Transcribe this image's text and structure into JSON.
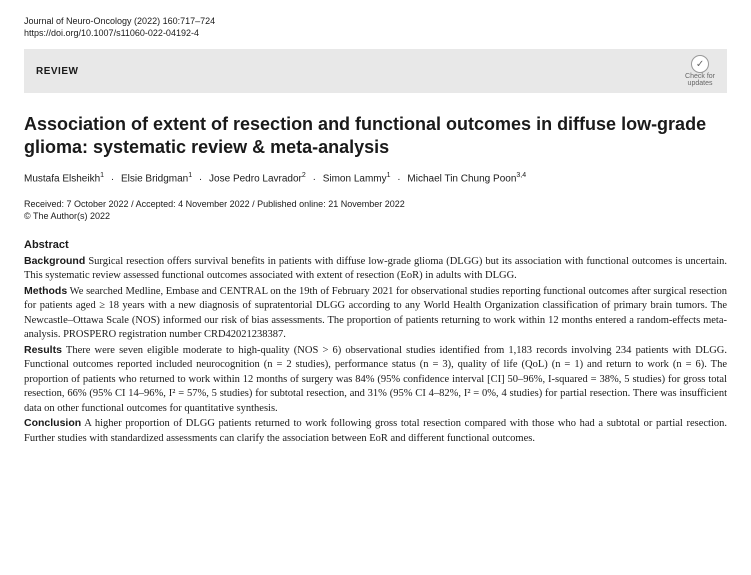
{
  "meta": {
    "journal_line": "Journal of Neuro-Oncology (2022) 160:717–724",
    "doi": "https://doi.org/10.1007/s11060-022-04192-4"
  },
  "review_bar": {
    "label": "REVIEW",
    "check_label_1": "Check for",
    "check_label_2": "updates"
  },
  "title": "Association of extent of resection and functional outcomes in diffuse low-grade glioma: systematic review & meta-analysis",
  "authors": {
    "a1_name": "Mustafa Elsheikh",
    "a1_aff": "1",
    "a2_name": "Elsie Bridgman",
    "a2_aff": "1",
    "a3_name": "Jose Pedro Lavrador",
    "a3_aff": "2",
    "a4_name": "Simon Lammy",
    "a4_aff": "1",
    "a5_name": "Michael Tin Chung Poon",
    "a5_aff": "3,4"
  },
  "dates": "Received: 7 October 2022 / Accepted: 4 November 2022 / Published online: 21 November 2022",
  "copyright": "© The Author(s) 2022",
  "abstract": {
    "heading": "Abstract",
    "background_label": "Background",
    "background_text": "  Surgical resection offers survival benefits in patients with diffuse low-grade glioma (DLGG) but its association with functional outcomes is uncertain. This systematic review assessed functional outcomes associated with extent of resection (EoR) in adults with DLGG.",
    "methods_label": "Methods",
    "methods_text": "  We searched Medline, Embase and CENTRAL on the 19th of February 2021 for observational studies reporting functional outcomes after surgical resection for patients aged ≥ 18 years with a new diagnosis of supratentorial DLGG according to any World Health Organization classification of primary brain tumors. The Newcastle–Ottawa Scale (NOS) informed our risk of bias assessments. The proportion of patients returning to work within 12 months entered a random-effects meta-analysis. PROSPERO registration number CRD42021238387.",
    "results_label": "Results",
    "results_text": "  There were seven eligible moderate to high-quality (NOS > 6) observational studies identified from 1,183 records involving 234 patients with DLGG. Functional outcomes reported included neurocognition (n = 2 studies), performance status (n = 3), quality of life (QoL) (n = 1) and return to work (n = 6). The proportion of patients who returned to work within 12 months of surgery was 84% (95% confidence interval [CI] 50–96%, I-squared = 38%, 5 studies) for gross total resection, 66% (95% CI 14–96%, I² = 57%, 5 studies) for subtotal resection, and 31% (95% CI 4–82%, I² = 0%, 4 studies) for partial resection. There was insufficient data on other functional outcomes for quantitative synthesis.",
    "conclusion_label": "Conclusion",
    "conclusion_text": "  A higher proportion of DLGG patients returned to work following gross total resection compared with those who had a subtotal or partial resection. Further studies with standardized assessments can clarify the association between EoR and different functional outcomes."
  }
}
